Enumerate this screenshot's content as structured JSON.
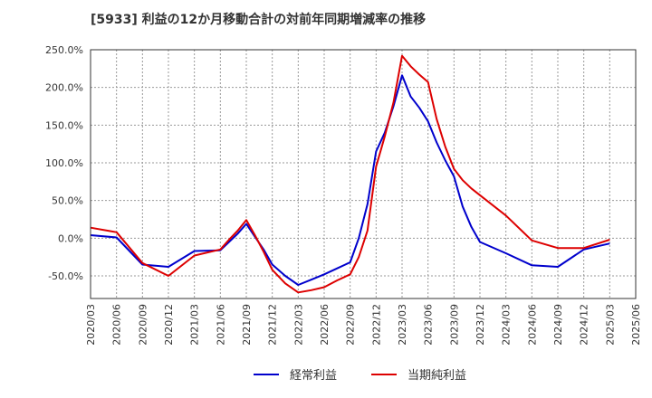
{
  "chart_data": {
    "type": "line",
    "title": "[5933]  利益の12か月移動合計の対前年同期増減率の推移",
    "xlabel": "",
    "ylabel": "",
    "ylim": [
      -80,
      250
    ],
    "yticks": [
      -50,
      0,
      50,
      100,
      150,
      200,
      250
    ],
    "ytick_labels": [
      "-50.0%",
      "0.0%",
      "50.0%",
      "100.0%",
      "150.0%",
      "200.0%",
      "250.0%"
    ],
    "xtick_labels": [
      "2020/03",
      "2020/06",
      "2020/09",
      "2020/12",
      "2021/03",
      "2021/06",
      "2021/09",
      "2021/12",
      "2022/03",
      "2022/06",
      "2022/09",
      "2022/12",
      "2023/03",
      "2023/06",
      "2023/09",
      "2023/12",
      "2024/03",
      "2024/06",
      "2024/09",
      "2024/12",
      "2025/03",
      "2025/06"
    ],
    "grid": true,
    "legend": "bottom",
    "series": [
      {
        "name": "経常利益",
        "color": "#0000cc",
        "points": [
          [
            0,
            4
          ],
          [
            1,
            1
          ],
          [
            2,
            -35
          ],
          [
            3,
            -38
          ],
          [
            4,
            -17
          ],
          [
            5,
            -16
          ],
          [
            5.333,
            -5
          ],
          [
            5.667,
            6
          ],
          [
            6,
            19
          ],
          [
            6.333,
            2
          ],
          [
            6.667,
            -15
          ],
          [
            7,
            -35
          ],
          [
            7.5,
            -50
          ],
          [
            8,
            -62
          ],
          [
            8.5,
            -55
          ],
          [
            9,
            -48
          ],
          [
            9.5,
            -40
          ],
          [
            10,
            -32
          ],
          [
            10.333,
            0
          ],
          [
            10.667,
            45
          ],
          [
            11,
            115
          ],
          [
            11.333,
            140
          ],
          [
            11.667,
            175
          ],
          [
            12,
            216
          ],
          [
            12.333,
            188
          ],
          [
            12.667,
            173
          ],
          [
            13,
            155
          ],
          [
            13.333,
            127
          ],
          [
            13.667,
            103
          ],
          [
            14,
            82
          ],
          [
            14.333,
            42
          ],
          [
            14.667,
            15
          ],
          [
            15,
            -5
          ],
          [
            16,
            -20
          ],
          [
            17,
            -36
          ],
          [
            18,
            -38
          ],
          [
            19,
            -15
          ],
          [
            20,
            -7
          ]
        ]
      },
      {
        "name": "当期純利益",
        "color": "#dd0000",
        "points": [
          [
            0,
            14
          ],
          [
            1,
            8
          ],
          [
            2,
            -33
          ],
          [
            3,
            -50
          ],
          [
            4,
            -23
          ],
          [
            5,
            -15
          ],
          [
            5.333,
            -2
          ],
          [
            5.667,
            10
          ],
          [
            6,
            24
          ],
          [
            6.333,
            4
          ],
          [
            6.667,
            -18
          ],
          [
            7,
            -42
          ],
          [
            7.5,
            -60
          ],
          [
            8,
            -72
          ],
          [
            8.5,
            -69
          ],
          [
            9,
            -65
          ],
          [
            9.5,
            -56
          ],
          [
            10,
            -48
          ],
          [
            10.333,
            -25
          ],
          [
            10.667,
            10
          ],
          [
            11,
            95
          ],
          [
            11.333,
            135
          ],
          [
            11.667,
            180
          ],
          [
            12,
            242
          ],
          [
            12.333,
            228
          ],
          [
            12.667,
            217
          ],
          [
            13,
            207
          ],
          [
            13.333,
            158
          ],
          [
            13.667,
            121
          ],
          [
            14,
            92
          ],
          [
            14.333,
            77
          ],
          [
            14.667,
            66
          ],
          [
            15,
            57
          ],
          [
            16,
            30
          ],
          [
            17,
            -3
          ],
          [
            18,
            -13
          ],
          [
            19,
            -13
          ],
          [
            20,
            -2
          ]
        ]
      }
    ]
  }
}
